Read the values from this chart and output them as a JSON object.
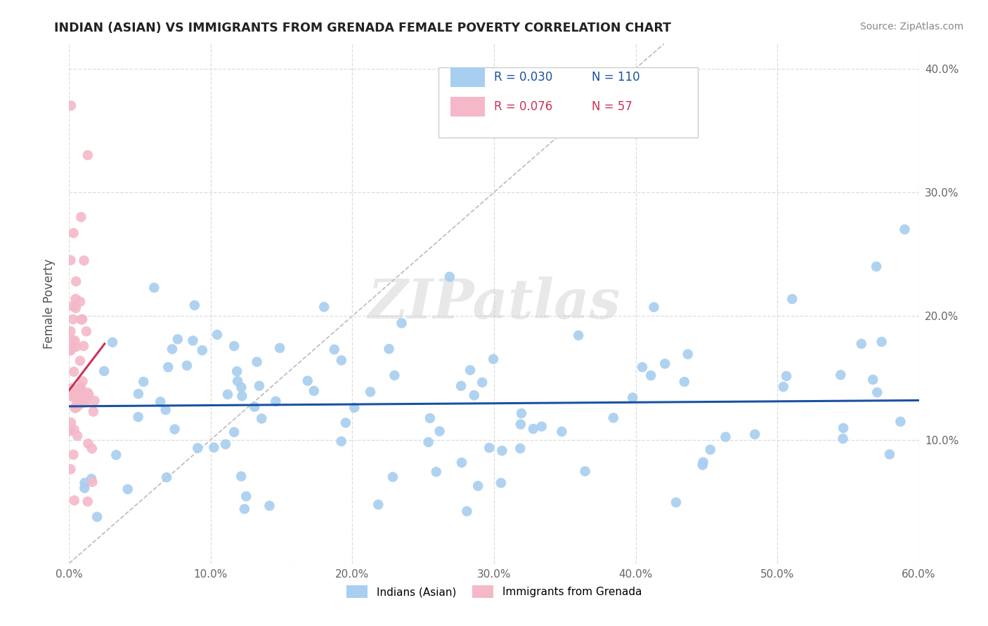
{
  "title": "INDIAN (ASIAN) VS IMMIGRANTS FROM GRENADA FEMALE POVERTY CORRELATION CHART",
  "source": "Source: ZipAtlas.com",
  "ylabel": "Female Poverty",
  "xlim": [
    0.0,
    0.6
  ],
  "ylim": [
    0.0,
    0.42
  ],
  "xtick_values": [
    0.0,
    0.1,
    0.2,
    0.3,
    0.4,
    0.5,
    0.6
  ],
  "ytick_values": [
    0.0,
    0.1,
    0.2,
    0.3,
    0.4
  ],
  "legend_labels": [
    "Indians (Asian)",
    "Immigrants from Grenada"
  ],
  "legend_R": [
    "0.030",
    "0.076"
  ],
  "legend_N": [
    "110",
    "57"
  ],
  "blue_color": "#A8CEF0",
  "pink_color": "#F5B8C8",
  "blue_line_color": "#1A52A0",
  "pink_line_color": "#CC3355",
  "diagonal_color": "#BBBBBB",
  "grid_color": "#DDDDDD",
  "watermark": "ZIPatlas",
  "background_color": "#FFFFFF",
  "title_color": "#222222",
  "source_color": "#888888",
  "tick_color": "#666666"
}
